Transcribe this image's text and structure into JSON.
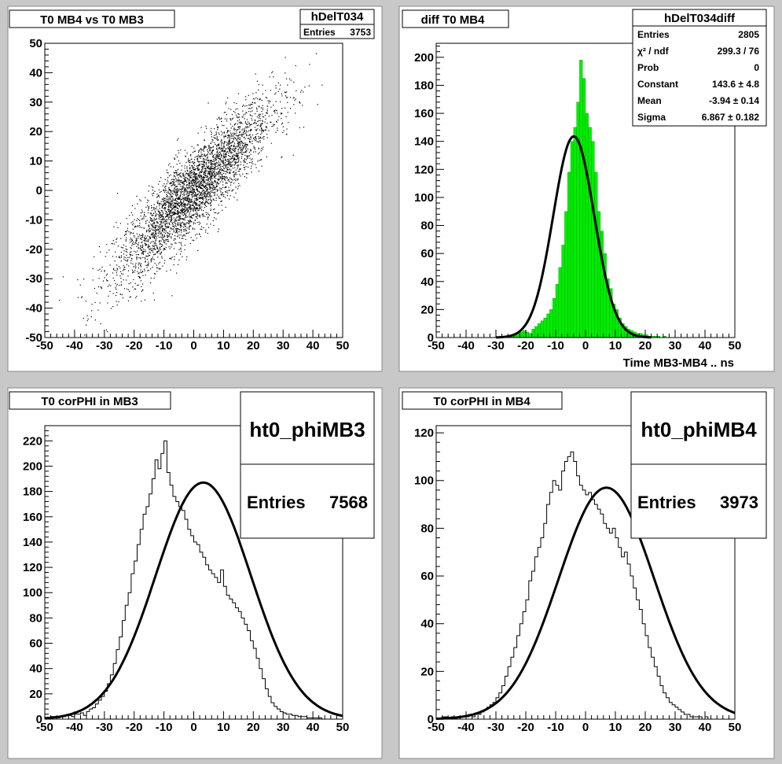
{
  "chart_data": [
    {
      "type": "scatter",
      "title": "T0 MB4 vs T0 MB3",
      "histogram_name": "hDelT034",
      "stats": [
        {
          "label": "Entries",
          "value": "3753"
        }
      ],
      "xlim": [
        -50,
        50
      ],
      "ylim": [
        -50,
        50
      ],
      "xticks": [
        "-50",
        "-40",
        "-30",
        "-20",
        "-10",
        "0",
        "10",
        "20",
        "30",
        "40",
        "50"
      ],
      "yticks": [
        "-50",
        "-40",
        "-30",
        "-20",
        "-10",
        "0",
        "10",
        "20",
        "30",
        "40",
        "50"
      ],
      "entries": 3753,
      "points_description_model": {
        "mean_x": 0,
        "sigma_x": 13,
        "slope": 1.0,
        "sigma_residual": 7
      }
    },
    {
      "type": "bar",
      "title": "diff T0 MB4",
      "histogram_name": "hDelT034diff",
      "xlabel": "Time MB3-MB4  ..  ns",
      "xlim": [
        -50,
        50
      ],
      "ylim": [
        0,
        210
      ],
      "xticks": [
        "-50",
        "-40",
        "-30",
        "-20",
        "-10",
        "0",
        "10",
        "20",
        "30",
        "40",
        "50"
      ],
      "yticks": [
        "0",
        "20",
        "40",
        "60",
        "80",
        "100",
        "120",
        "140",
        "160",
        "180",
        "200"
      ],
      "fill_color": "#00ee00",
      "stats": [
        {
          "label": "Entries",
          "value": "2805"
        },
        {
          "label": "χ² / ndf",
          "value": "299.3 / 76"
        },
        {
          "label": "Prob",
          "value": "0"
        },
        {
          "label": "Constant",
          "value": "143.6 ± 4.8"
        },
        {
          "label": "Mean",
          "value": "-3.94 ± 0.14"
        },
        {
          "label": "Sigma",
          "value": "6.867 ± 0.182"
        }
      ],
      "bin_width": 1,
      "bin_start": -50,
      "values": [
        0,
        0,
        0,
        0,
        0,
        0,
        0,
        0,
        0,
        0,
        0,
        0,
        0,
        0,
        0,
        0,
        0,
        0,
        0,
        0,
        0,
        0,
        0,
        0,
        1,
        2,
        3,
        3,
        4,
        5,
        4,
        3,
        6,
        8,
        10,
        12,
        14,
        17,
        20,
        28,
        38,
        50,
        66,
        90,
        118,
        140,
        150,
        168,
        198,
        185,
        160,
        150,
        140,
        118,
        90,
        76,
        60,
        42,
        35,
        24,
        20,
        14,
        10,
        8,
        6,
        5,
        4,
        3,
        3,
        2,
        2,
        1,
        1,
        1,
        1,
        0,
        1,
        0,
        0,
        0,
        0,
        0,
        0,
        0,
        0,
        0,
        0,
        0,
        0,
        0,
        0,
        0,
        0,
        0,
        0,
        0,
        0,
        0,
        0,
        0
      ],
      "fit": {
        "constant": 143.6,
        "mean": -3.94,
        "sigma": 6.867
      }
    },
    {
      "type": "bar",
      "title": "T0 corPHI in MB3",
      "histogram_name": "ht0_phiMB3",
      "stats": [
        {
          "label": "Entries",
          "value": "7568"
        }
      ],
      "xlim": [
        -50,
        50
      ],
      "ylim": [
        0,
        232
      ],
      "xticks": [
        "-50",
        "-40",
        "-30",
        "-20",
        "-10",
        "0",
        "10",
        "20",
        "30",
        "40",
        "50"
      ],
      "yticks": [
        "0",
        "20",
        "40",
        "60",
        "80",
        "100",
        "120",
        "140",
        "160",
        "180",
        "200",
        "220"
      ],
      "bin_width": 1,
      "bin_start": -50,
      "values": [
        1,
        1,
        2,
        2,
        1,
        2,
        2,
        3,
        3,
        2,
        4,
        4,
        5,
        3,
        6,
        8,
        9,
        12,
        15,
        18,
        22,
        28,
        35,
        44,
        55,
        65,
        78,
        90,
        100,
        115,
        125,
        138,
        150,
        162,
        168,
        178,
        190,
        205,
        198,
        210,
        220,
        195,
        185,
        176,
        172,
        168,
        165,
        158,
        150,
        145,
        140,
        138,
        132,
        128,
        122,
        118,
        115,
        112,
        108,
        118,
        105,
        98,
        95,
        92,
        88,
        85,
        80,
        75,
        70,
        62,
        56,
        48,
        40,
        32,
        24,
        18,
        13,
        10,
        8,
        6,
        5,
        4,
        4,
        3,
        3,
        2,
        2,
        2,
        1,
        1,
        1,
        1,
        1,
        0,
        0,
        0,
        0,
        0,
        0,
        0
      ],
      "fit": {
        "constant": 187,
        "mean": 3.2,
        "sigma": 16
      }
    },
    {
      "type": "bar",
      "title": "T0 corPHI in MB4",
      "histogram_name": "ht0_phiMB4",
      "stats": [
        {
          "label": "Entries",
          "value": "3973"
        }
      ],
      "xlim": [
        -50,
        50
      ],
      "ylim": [
        0,
        123
      ],
      "xticks": [
        "-50",
        "-40",
        "-30",
        "-20",
        "-10",
        "0",
        "10",
        "20",
        "30",
        "40",
        "50"
      ],
      "yticks": [
        "0",
        "20",
        "40",
        "60",
        "80",
        "100",
        "120"
      ],
      "bin_width": 1,
      "bin_start": -50,
      "values": [
        0,
        0,
        1,
        1,
        0,
        1,
        1,
        0,
        1,
        1,
        1,
        2,
        1,
        2,
        2,
        3,
        4,
        5,
        6,
        7,
        9,
        11,
        14,
        18,
        22,
        26,
        30,
        35,
        40,
        45,
        50,
        58,
        62,
        68,
        72,
        76,
        82,
        90,
        95,
        100,
        98,
        96,
        104,
        108,
        110,
        112,
        108,
        102,
        98,
        96,
        94,
        95,
        92,
        90,
        88,
        86,
        82,
        80,
        78,
        80,
        76,
        72,
        68,
        70,
        65,
        60,
        55,
        50,
        46,
        40,
        35,
        30,
        26,
        22,
        18,
        14,
        11,
        9,
        7,
        6,
        5,
        4,
        3,
        2,
        2,
        1,
        1,
        1,
        1,
        0,
        1,
        0,
        0,
        0,
        0,
        0,
        0,
        0,
        0,
        0
      ],
      "fit": {
        "constant": 97,
        "mean": 7,
        "sigma": 16
      }
    }
  ]
}
